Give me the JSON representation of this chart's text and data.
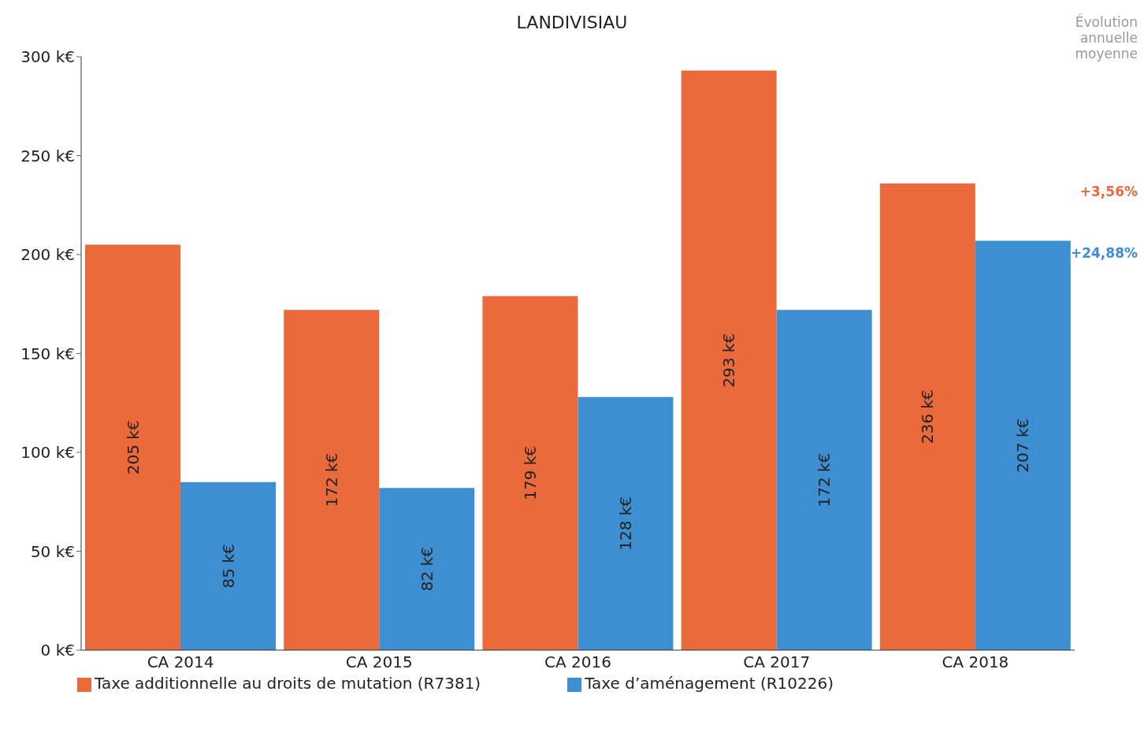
{
  "chart_data": {
    "type": "bar",
    "title": "LANDIVISIAU",
    "categories": [
      "CA 2014",
      "CA 2015",
      "CA 2016",
      "CA 2017",
      "CA 2018"
    ],
    "series": [
      {
        "name": "Taxe additionnelle au droits de mutation (R7381)",
        "color": "#ea6a3c",
        "values": [
          205,
          172,
          179,
          293,
          236
        ],
        "value_labels": [
          "205 k€",
          "172 k€",
          "179 k€",
          "293 k€",
          "236 k€"
        ]
      },
      {
        "name": "Taxe d’aménagement (R10226)",
        "color": "#3d8fd1",
        "values": [
          85,
          82,
          128,
          172,
          207
        ],
        "value_labels": [
          "85 k€",
          "82 k€",
          "128 k€",
          "172 k€",
          "207 k€"
        ]
      }
    ],
    "ylim": [
      0,
      300
    ],
    "yticks": [
      {
        "value": 0,
        "label": "0 k€"
      },
      {
        "value": 50,
        "label": "50 k€"
      },
      {
        "value": 100,
        "label": "100 k€"
      },
      {
        "value": 150,
        "label": "150 k€"
      },
      {
        "value": 200,
        "label": "200 k€"
      },
      {
        "value": 250,
        "label": "250 k€"
      },
      {
        "value": 300,
        "label": "300 k€"
      }
    ],
    "annotations": [
      "Évolution annuelle moyenne",
      "+3,56%",
      "+24,88%"
    ],
    "grid": false,
    "legend": "bottom left"
  }
}
